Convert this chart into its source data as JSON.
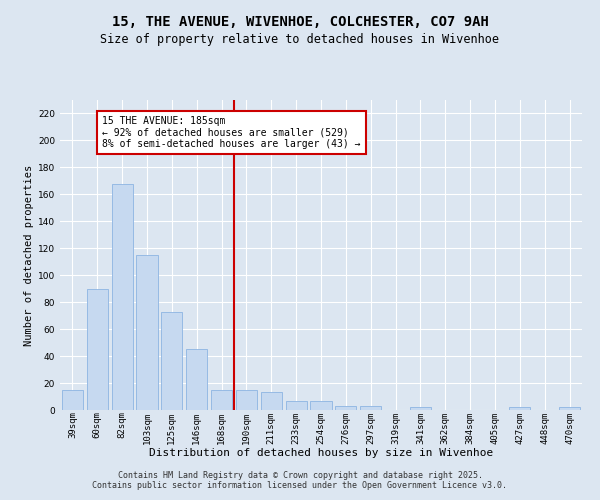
{
  "title": "15, THE AVENUE, WIVENHOE, COLCHESTER, CO7 9AH",
  "subtitle": "Size of property relative to detached houses in Wivenhoe",
  "xlabel": "Distribution of detached houses by size in Wivenhoe",
  "ylabel": "Number of detached properties",
  "categories": [
    "39sqm",
    "60sqm",
    "82sqm",
    "103sqm",
    "125sqm",
    "146sqm",
    "168sqm",
    "190sqm",
    "211sqm",
    "233sqm",
    "254sqm",
    "276sqm",
    "297sqm",
    "319sqm",
    "341sqm",
    "362sqm",
    "384sqm",
    "405sqm",
    "427sqm",
    "448sqm",
    "470sqm"
  ],
  "values": [
    15,
    90,
    168,
    115,
    73,
    45,
    15,
    15,
    13,
    7,
    7,
    3,
    3,
    0,
    2,
    0,
    0,
    0,
    2,
    0,
    2
  ],
  "bar_color": "#c6d9f0",
  "bar_edge_color": "#8db4e2",
  "vline_x_index": 7,
  "vline_color": "#cc0000",
  "annotation_text": "15 THE AVENUE: 185sqm\n← 92% of detached houses are smaller (529)\n8% of semi-detached houses are larger (43) →",
  "annotation_box_facecolor": "#ffffff",
  "annotation_box_edgecolor": "#cc0000",
  "ylim": [
    0,
    230
  ],
  "yticks": [
    0,
    20,
    40,
    60,
    80,
    100,
    120,
    140,
    160,
    180,
    200,
    220
  ],
  "background_color": "#dce6f1",
  "plot_bg_color": "#dce6f1",
  "footer_text": "Contains HM Land Registry data © Crown copyright and database right 2025.\nContains public sector information licensed under the Open Government Licence v3.0.",
  "title_fontsize": 10,
  "subtitle_fontsize": 8.5,
  "xlabel_fontsize": 8,
  "ylabel_fontsize": 7.5,
  "tick_fontsize": 6.5,
  "annotation_fontsize": 7,
  "footer_fontsize": 6
}
